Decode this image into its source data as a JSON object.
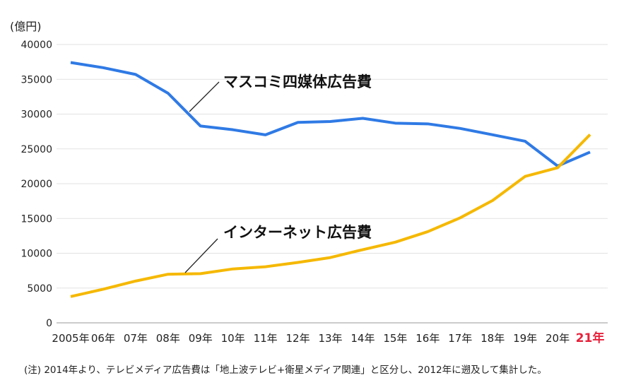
{
  "chart_data": {
    "type": "line",
    "unit_label": "(億円)",
    "categories": [
      "2005年",
      "06年",
      "07年",
      "08年",
      "09年",
      "10年",
      "11年",
      "12年",
      "13年",
      "14年",
      "15年",
      "16年",
      "17年",
      "18年",
      "19年",
      "20年",
      "21年"
    ],
    "highlight_category": "21年",
    "highlight_color": "#e8203a",
    "yticks": [
      0,
      5000,
      10000,
      15000,
      20000,
      25000,
      30000,
      35000,
      40000
    ],
    "ylim": [
      0,
      40000
    ],
    "grid": true,
    "series": [
      {
        "name": "マスコミ四媒体広告費",
        "color": "#2f7ae5",
        "values": [
          37408,
          36668,
          35699,
          32995,
          28282,
          27749,
          27016,
          28809,
          28935,
          29393,
          28699,
          28596,
          27938,
          27026,
          26094,
          22536,
          24538
        ]
      },
      {
        "name": "インターネット広告費",
        "color": "#f5b800",
        "values": [
          3777,
          4826,
          6003,
          6983,
          7069,
          7747,
          8062,
          8680,
          9381,
          10519,
          11594,
          13100,
          15094,
          17589,
          21048,
          22290,
          27052
        ]
      }
    ]
  },
  "note": "(注) 2014年より、テレビメディア広告費は「地上波テレビ+衛星メディア関連」と区分し、2012年に遡及して集計した。"
}
